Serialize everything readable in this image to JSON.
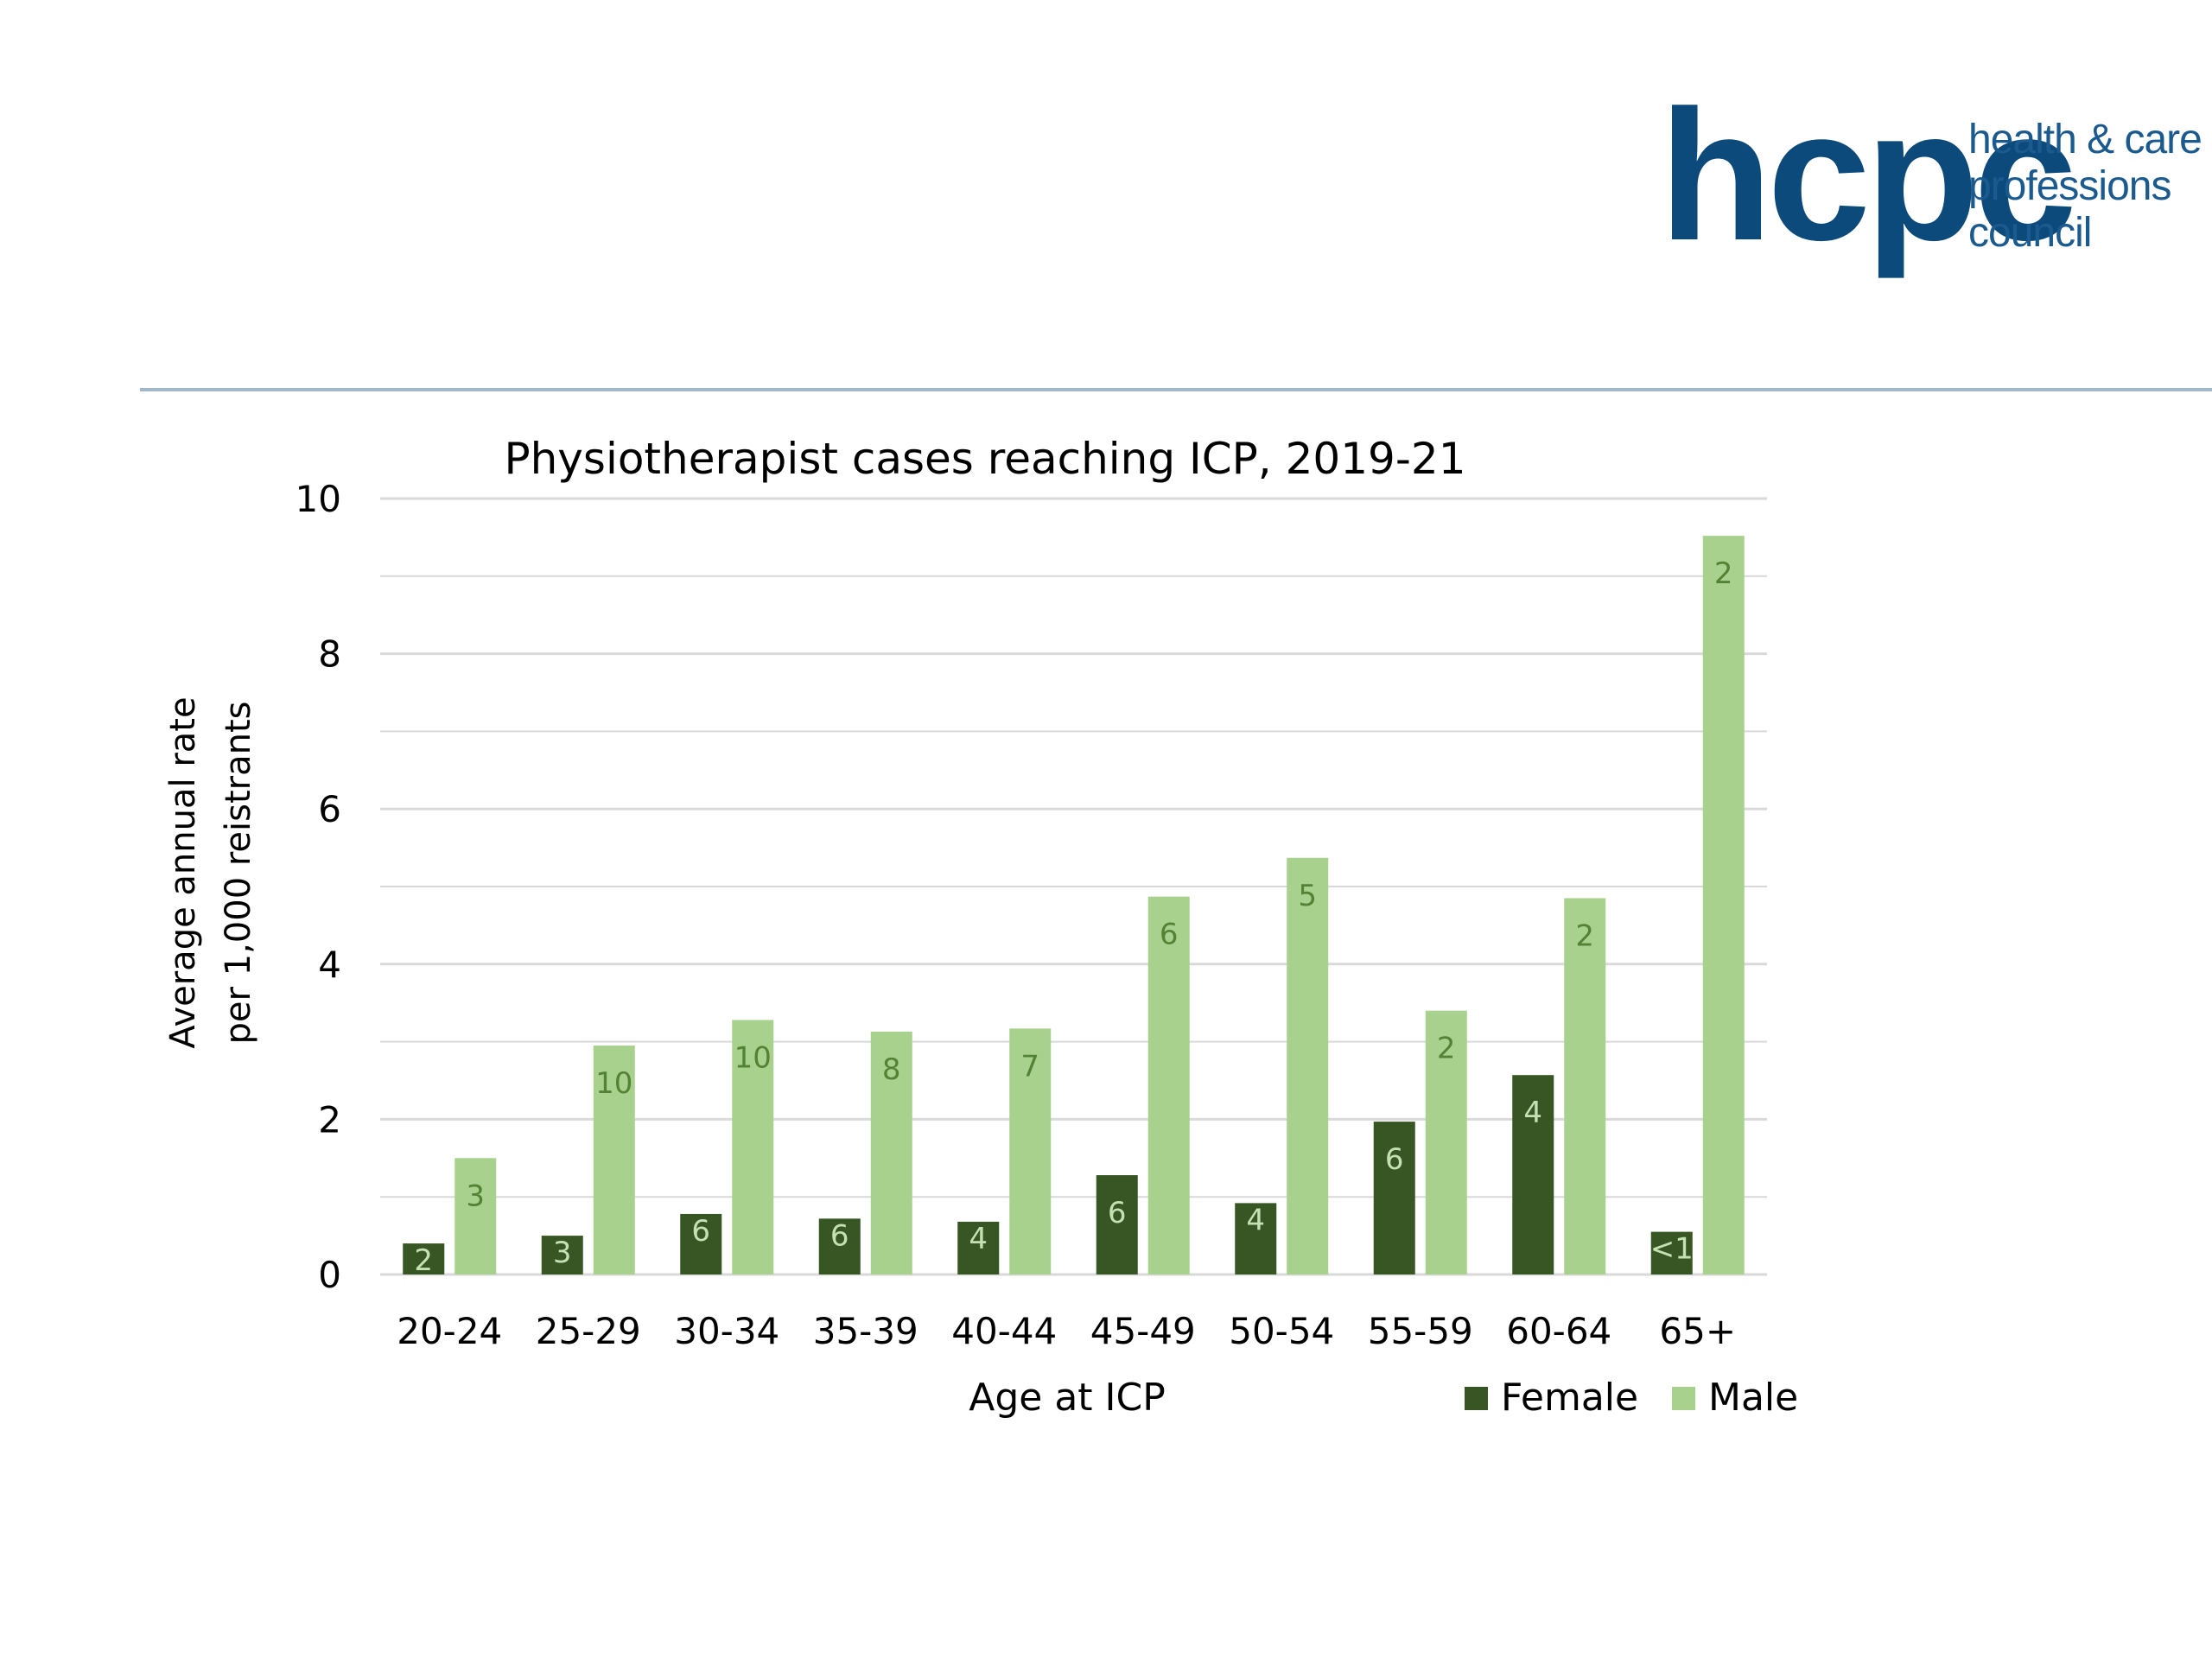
{
  "logo": {
    "mark": "hcpc",
    "lines": [
      "health & care",
      "professions",
      "council"
    ]
  },
  "colors": {
    "female": "#375623",
    "male": "#a9d18e",
    "male_label": "#548235",
    "female_label": "#c5e0b4",
    "gridline": "#d9d9d9",
    "rule": "#9fb8cc",
    "logo": "#0b4a7a"
  },
  "chart_data": {
    "type": "bar",
    "title": "Physiotherapist cases reaching ICP, 2019-21",
    "xlabel": "Age at ICP",
    "ylabel": [
      "Average annual rate",
      "per 1,000 reistrants"
    ],
    "ylim": [
      0,
      10
    ],
    "yticks": [
      "0",
      "2",
      "4",
      "6",
      "8",
      "10"
    ],
    "grid": true,
    "legend_position": "bottom-right",
    "categories": [
      "20-24",
      "25-29",
      "30-34",
      "35-39",
      "40-44",
      "45-49",
      "50-54",
      "55-59",
      "60-64",
      "65+"
    ],
    "series": [
      {
        "name": "Female",
        "values": [
          0.4,
          0.5,
          0.78,
          0.72,
          0.68,
          1.28,
          0.92,
          1.97,
          2.57,
          0.55
        ],
        "labels": [
          "2",
          "3",
          "6",
          "6",
          "4",
          "6",
          "4",
          "6",
          "4",
          "<1"
        ]
      },
      {
        "name": "Male",
        "values": [
          1.5,
          2.95,
          3.28,
          3.13,
          3.17,
          4.87,
          5.37,
          3.4,
          4.85,
          9.52
        ],
        "labels": [
          "3",
          "10",
          "10",
          "8",
          "7",
          "6",
          "5",
          "2",
          "2",
          "2"
        ]
      }
    ]
  }
}
